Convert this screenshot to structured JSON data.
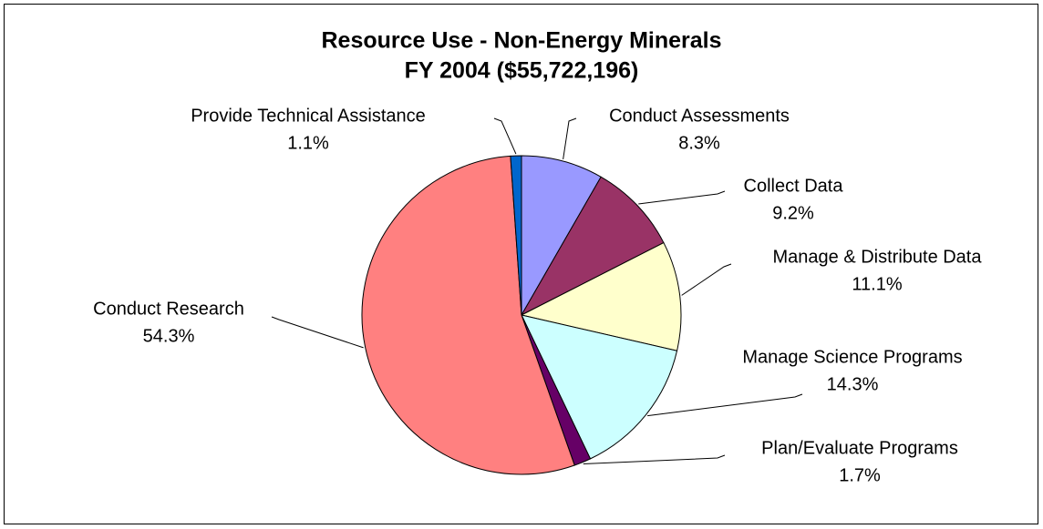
{
  "chart_data": {
    "type": "pie",
    "title": [
      "Resource Use - Non-Energy Minerals",
      "FY 2004 ($55,722,196)"
    ],
    "categories": [
      "Conduct Assessments",
      "Collect Data",
      "Manage & Distribute Data",
      "Manage Science Programs",
      "Plan/Evaluate Programs",
      "Conduct Research",
      "Provide Technical Assistance"
    ],
    "values": [
      8.3,
      9.2,
      11.1,
      14.3,
      1.7,
      54.3,
      1.1
    ],
    "value_labels": [
      "8.3%",
      "9.2%",
      "11.1%",
      "14.3%",
      "1.7%",
      "54.3%",
      "1.1%"
    ],
    "colors": [
      "#9999ff",
      "#993366",
      "#ffffcc",
      "#ccffff",
      "#660066",
      "#ff8080",
      "#0066cc"
    ]
  }
}
